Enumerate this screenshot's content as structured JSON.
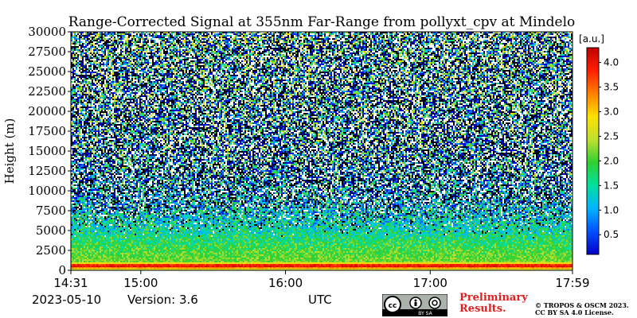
{
  "chart_data": {
    "type": "heatmap",
    "title": "Range-Corrected Signal at 355nm Far-Range from pollyxt_cpv at Mindelo",
    "xlabel": "",
    "ylabel": "Height (m)",
    "x_range_minutes": [
      871,
      1079
    ],
    "x_ticks": [
      {
        "label": "14:31",
        "minute": 871
      },
      {
        "label": "15:00",
        "minute": 900
      },
      {
        "label": "16:00",
        "minute": 960
      },
      {
        "label": "17:00",
        "minute": 1020
      },
      {
        "label": "17:59",
        "minute": 1079
      }
    ],
    "ylim": [
      0,
      30000
    ],
    "y_ticks": [
      0,
      2500,
      5000,
      7500,
      10000,
      12500,
      15000,
      17500,
      20000,
      22500,
      25000,
      27500,
      30000
    ],
    "colorbar": {
      "label": "[a.u.]",
      "range": [
        0.1,
        4.3
      ],
      "ticks": [
        "0.5",
        "1.0",
        "1.5",
        "2.0",
        "2.5",
        "3.0",
        "3.5",
        "4.0"
      ],
      "colormap": [
        "#0000c8",
        "#0050ff",
        "#00b4ff",
        "#00e0a0",
        "#30d030",
        "#c0e030",
        "#ffe000",
        "#ff8000",
        "#ff2000",
        "#c00000"
      ]
    },
    "profile": {
      "description_heights_m": [
        0,
        500,
        700,
        1000,
        2500,
        5000,
        7500,
        10000,
        15000,
        20000,
        25000,
        30000
      ],
      "mean_signal": [
        2.3,
        4.0,
        3.8,
        2.2,
        2.0,
        1.5,
        1.2,
        1.0,
        1.0,
        1.1,
        1.2,
        1.3
      ]
    },
    "missing_fraction_aloft": 0.45
  },
  "footer": {
    "date": "2023-05-10",
    "version": "Version: 3.6",
    "timezone": "UTC",
    "preliminary_line1": "Preliminary",
    "preliminary_line2": "Results.",
    "credit_line1": "© TROPOS & OSCM 2023.",
    "credit_line2": "CC BY SA 4.0 License.",
    "badge_text": "BY  SA"
  }
}
